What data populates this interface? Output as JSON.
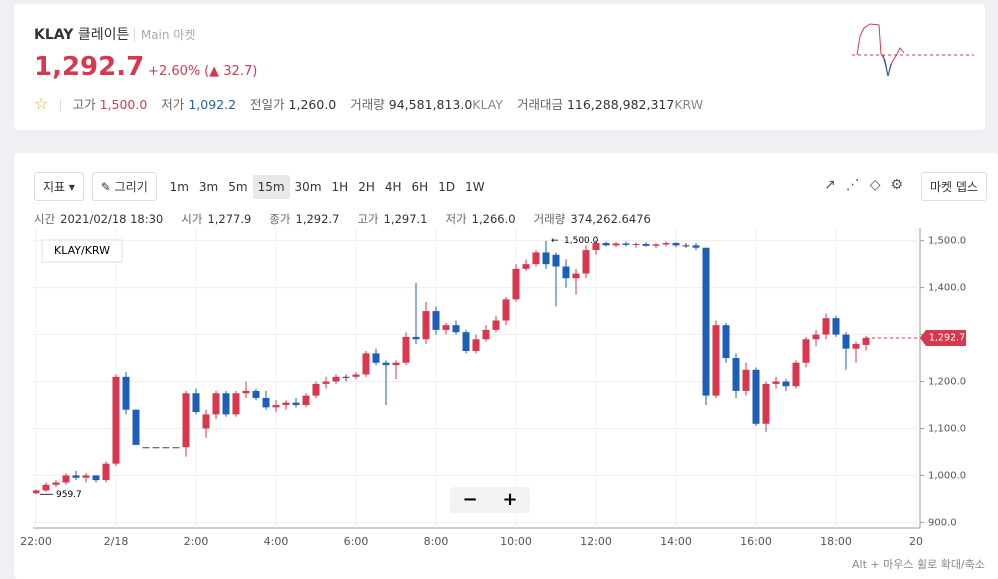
{
  "header": {
    "symbol": "KLAY",
    "name": "클레이튼",
    "market": "Main 마켓",
    "price": "1,292.7",
    "change_rate": "+2.60%",
    "change": "32.7",
    "stats": [
      {
        "label": "고가",
        "value": "1,500.0"
      },
      {
        "label": "저가",
        "value": "1,092.2"
      },
      {
        "label": "전일가",
        "value": "1,260.0"
      },
      {
        "label": "거래량",
        "value": "94,581,813.0",
        "unit": "KLAY"
      },
      {
        "label": "거래대금",
        "value": "116,288,982,317",
        "unit": "KRW"
      }
    ]
  },
  "toolbar": {
    "indicator": "지표",
    "draw": "그리기",
    "intervals": [
      "1m",
      "3m",
      "5m",
      "15m",
      "30m",
      "1H",
      "2H",
      "4H",
      "6H",
      "1D",
      "1W"
    ],
    "selected": "15m",
    "depth": "마켓 뎁스"
  },
  "info": [
    {
      "label": "시간",
      "value": "2021/02/18 18:30"
    },
    {
      "label": "시가",
      "value": "1,277.9"
    },
    {
      "label": "종가",
      "value": "1,292.7"
    },
    {
      "label": "고가",
      "value": "1,297.1"
    },
    {
      "label": "저가",
      "value": "1,266.0"
    },
    {
      "label": "거래량",
      "value": "374,262.6476"
    }
  ],
  "zoom_hint": "Alt + 마우스 휠로 확대/축소",
  "chart_data": {
    "type": "candlestick",
    "legend": "KLAY/KRW",
    "up_color": "#d9374e",
    "down_color": "#1c5fb8",
    "ylim": [
      888,
      1527
    ],
    "yticks": [
      {
        "value": 900,
        "label": "900.0"
      },
      {
        "value": 1000,
        "label": "1,000.0"
      },
      {
        "value": 1100,
        "label": "1,100.0"
      },
      {
        "value": 1200,
        "label": "1,200.0"
      },
      {
        "value": 1300,
        "label": "1,300.0"
      },
      {
        "value": 1400,
        "label": "1,400.0"
      },
      {
        "value": 1500,
        "label": "1,500.0"
      }
    ],
    "xtick_labels": [
      "22:00",
      "2/18",
      "2:00",
      "4:00",
      "6:00",
      "8:00",
      "10:00",
      "12:00",
      "14:00",
      "16:00",
      "18:00",
      "20"
    ],
    "high_label": {
      "value": 1500,
      "label": "1,500.0"
    },
    "low_label": {
      "value": 959.7,
      "label": "959.7"
    },
    "last_label": {
      "value": 1292.7,
      "label": "1,292.7"
    },
    "candles": [
      [
        965,
        968,
        960,
        962
      ],
      [
        962,
        970,
        959.7,
        968
      ],
      [
        968,
        985,
        965,
        980
      ],
      [
        980,
        990,
        975,
        985
      ],
      [
        985,
        1005,
        980,
        1000
      ],
      [
        1000,
        1010,
        990,
        995
      ],
      [
        995,
        1005,
        985,
        1000
      ],
      [
        1000,
        1000,
        985,
        990
      ],
      [
        990,
        1030,
        985,
        1025
      ],
      [
        1025,
        1215,
        1020,
        1210
      ],
      [
        1210,
        1220,
        1130,
        1140
      ],
      [
        1140,
        1140,
        1065,
        1065
      ],
      [
        1060,
        1060,
        1060,
        1060
      ],
      [
        1060,
        1060,
        1060,
        1060
      ],
      [
        1060,
        1060,
        1060,
        1060
      ],
      [
        1060,
        1060,
        1060,
        1060
      ],
      [
        1060,
        1180,
        1040,
        1175
      ],
      [
        1175,
        1185,
        1130,
        1135
      ],
      [
        1100,
        1140,
        1080,
        1130
      ],
      [
        1130,
        1180,
        1120,
        1175
      ],
      [
        1175,
        1180,
        1125,
        1130
      ],
      [
        1130,
        1180,
        1125,
        1175
      ],
      [
        1175,
        1200,
        1165,
        1180
      ],
      [
        1180,
        1185,
        1160,
        1165
      ],
      [
        1165,
        1180,
        1140,
        1145
      ],
      [
        1145,
        1160,
        1135,
        1150
      ],
      [
        1150,
        1160,
        1140,
        1155
      ],
      [
        1155,
        1165,
        1145,
        1150
      ],
      [
        1150,
        1175,
        1145,
        1170
      ],
      [
        1170,
        1200,
        1165,
        1195
      ],
      [
        1195,
        1210,
        1185,
        1200
      ],
      [
        1200,
        1215,
        1195,
        1210
      ],
      [
        1210,
        1215,
        1200,
        1210
      ],
      [
        1210,
        1220,
        1205,
        1215
      ],
      [
        1215,
        1265,
        1210,
        1260
      ],
      [
        1260,
        1270,
        1235,
        1240
      ],
      [
        1240,
        1245,
        1150,
        1235
      ],
      [
        1235,
        1245,
        1205,
        1240
      ],
      [
        1240,
        1305,
        1235,
        1295
      ],
      [
        1295,
        1410,
        1280,
        1290
      ],
      [
        1290,
        1370,
        1280,
        1350
      ],
      [
        1350,
        1360,
        1300,
        1310
      ],
      [
        1310,
        1325,
        1300,
        1320
      ],
      [
        1320,
        1330,
        1300,
        1305
      ],
      [
        1305,
        1310,
        1260,
        1265
      ],
      [
        1265,
        1300,
        1260,
        1290
      ],
      [
        1290,
        1320,
        1285,
        1310
      ],
      [
        1310,
        1340,
        1305,
        1330
      ],
      [
        1330,
        1380,
        1320,
        1375
      ],
      [
        1375,
        1450,
        1370,
        1440
      ],
      [
        1440,
        1460,
        1435,
        1450
      ],
      [
        1450,
        1480,
        1445,
        1475
      ],
      [
        1475,
        1500,
        1440,
        1450
      ],
      [
        1470,
        1475,
        1360,
        1445
      ],
      [
        1445,
        1460,
        1400,
        1420
      ],
      [
        1420,
        1440,
        1385,
        1430
      ],
      [
        1430,
        1490,
        1420,
        1480
      ],
      [
        1480,
        1500,
        1470,
        1495
      ],
      [
        1495,
        1498,
        1488,
        1490
      ],
      [
        1490,
        1497,
        1486,
        1494
      ],
      [
        1494,
        1498,
        1488,
        1491
      ],
      [
        1491,
        1496,
        1485,
        1493
      ],
      [
        1493,
        1497,
        1487,
        1489
      ],
      [
        1489,
        1495,
        1484,
        1492
      ],
      [
        1492,
        1498,
        1488,
        1495
      ],
      [
        1495,
        1497,
        1486,
        1490
      ],
      [
        1490,
        1495,
        1485,
        1490
      ],
      [
        1490,
        1495,
        1480,
        1485
      ],
      [
        1485,
        1485,
        1150,
        1170
      ],
      [
        1170,
        1330,
        1165,
        1320
      ],
      [
        1320,
        1325,
        1240,
        1250
      ],
      [
        1250,
        1260,
        1165,
        1180
      ],
      [
        1180,
        1240,
        1170,
        1225
      ],
      [
        1225,
        1230,
        1105,
        1110
      ],
      [
        1110,
        1200,
        1092.2,
        1195
      ],
      [
        1195,
        1210,
        1185,
        1200
      ],
      [
        1200,
        1205,
        1180,
        1190
      ],
      [
        1190,
        1245,
        1185,
        1240
      ],
      [
        1240,
        1295,
        1230,
        1290
      ],
      [
        1290,
        1310,
        1275,
        1300
      ],
      [
        1300,
        1345,
        1290,
        1335
      ],
      [
        1335,
        1340,
        1295,
        1300
      ],
      [
        1300,
        1305,
        1225,
        1270
      ],
      [
        1270,
        1285,
        1240,
        1280
      ],
      [
        1277.9,
        1297.1,
        1266,
        1292.7
      ]
    ]
  }
}
